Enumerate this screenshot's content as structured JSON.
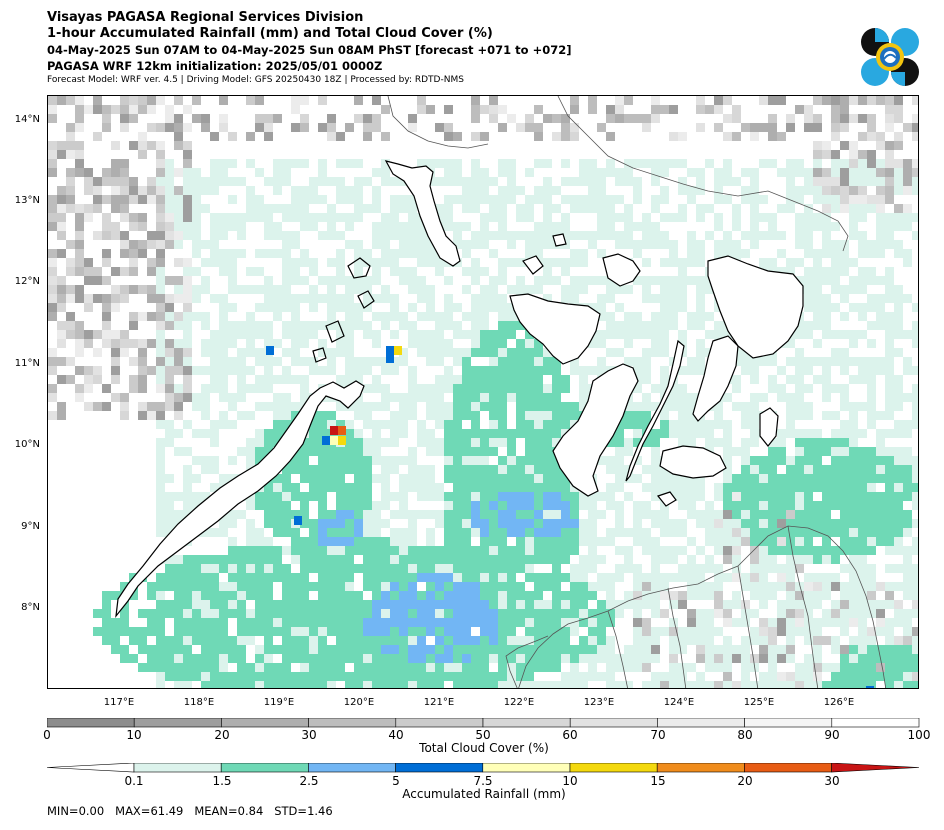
{
  "header": {
    "title_line1": "Visayas PAGASA Regional Services Division",
    "title_line2": "1-hour Accumulated Rainfall (mm) and Total Cloud Cover (%)",
    "title_line3": "04-May-2025 Sun 07AM to 04-May-2025 Sun 08AM PhST [forecast +071 to +072]",
    "title_line4": "PAGASA WRF 12km initialization: 2025/05/01 0000Z",
    "title_line5": "Forecast Model: WRF ver. 4.5 | Driving Model: GFS 20250430 18Z | Processed by: RDTD-NMS"
  },
  "map": {
    "lat_labels": [
      "14°N",
      "13°N",
      "12°N",
      "11°N",
      "10°N",
      "9°N",
      "8°N"
    ],
    "lon_labels": [
      "117°E",
      "118°E",
      "119°E",
      "120°E",
      "121°E",
      "122°E",
      "123°E",
      "124°E",
      "125°E",
      "126°E"
    ]
  },
  "cloud_legend": {
    "title": "Total Cloud Cover (%)",
    "ticks": [
      "0",
      "10",
      "20",
      "30",
      "40",
      "50",
      "60",
      "70",
      "80",
      "90",
      "100"
    ],
    "colors": [
      "#8c8c8c",
      "#9e9e9e",
      "#aeaeae",
      "#bdbdbd",
      "#cbcbcb",
      "#d7d7d7",
      "#e2e2e2",
      "#ececec",
      "#f5f5f5",
      "#ffffff"
    ]
  },
  "rain_legend": {
    "title": "Accumulated Rainfall (mm)",
    "ticks": [
      "0.1",
      "1.5",
      "2.5",
      "5",
      "7.5",
      "10",
      "15",
      "20",
      "30"
    ],
    "colors": [
      "#dcf3ec",
      "#6fd9b6",
      "#72b6f4",
      "#006ed6",
      "#ffffb8",
      "#f4d90e",
      "#f08c1c",
      "#e85c14",
      "#c81414"
    ]
  },
  "stats": {
    "min_label": "MIN=",
    "min": "0.00",
    "max_label": "MAX=",
    "max": "61.49",
    "mean_label": "MEAN=",
    "mean": "0.84",
    "std_label": "STD=",
    "std": "1.46"
  },
  "colors": {
    "light_rain": "#dcf3ec",
    "moderate_rain": "#6fd9b6",
    "heavy_rain": "#72b6f4",
    "land_outline": "#000000"
  }
}
